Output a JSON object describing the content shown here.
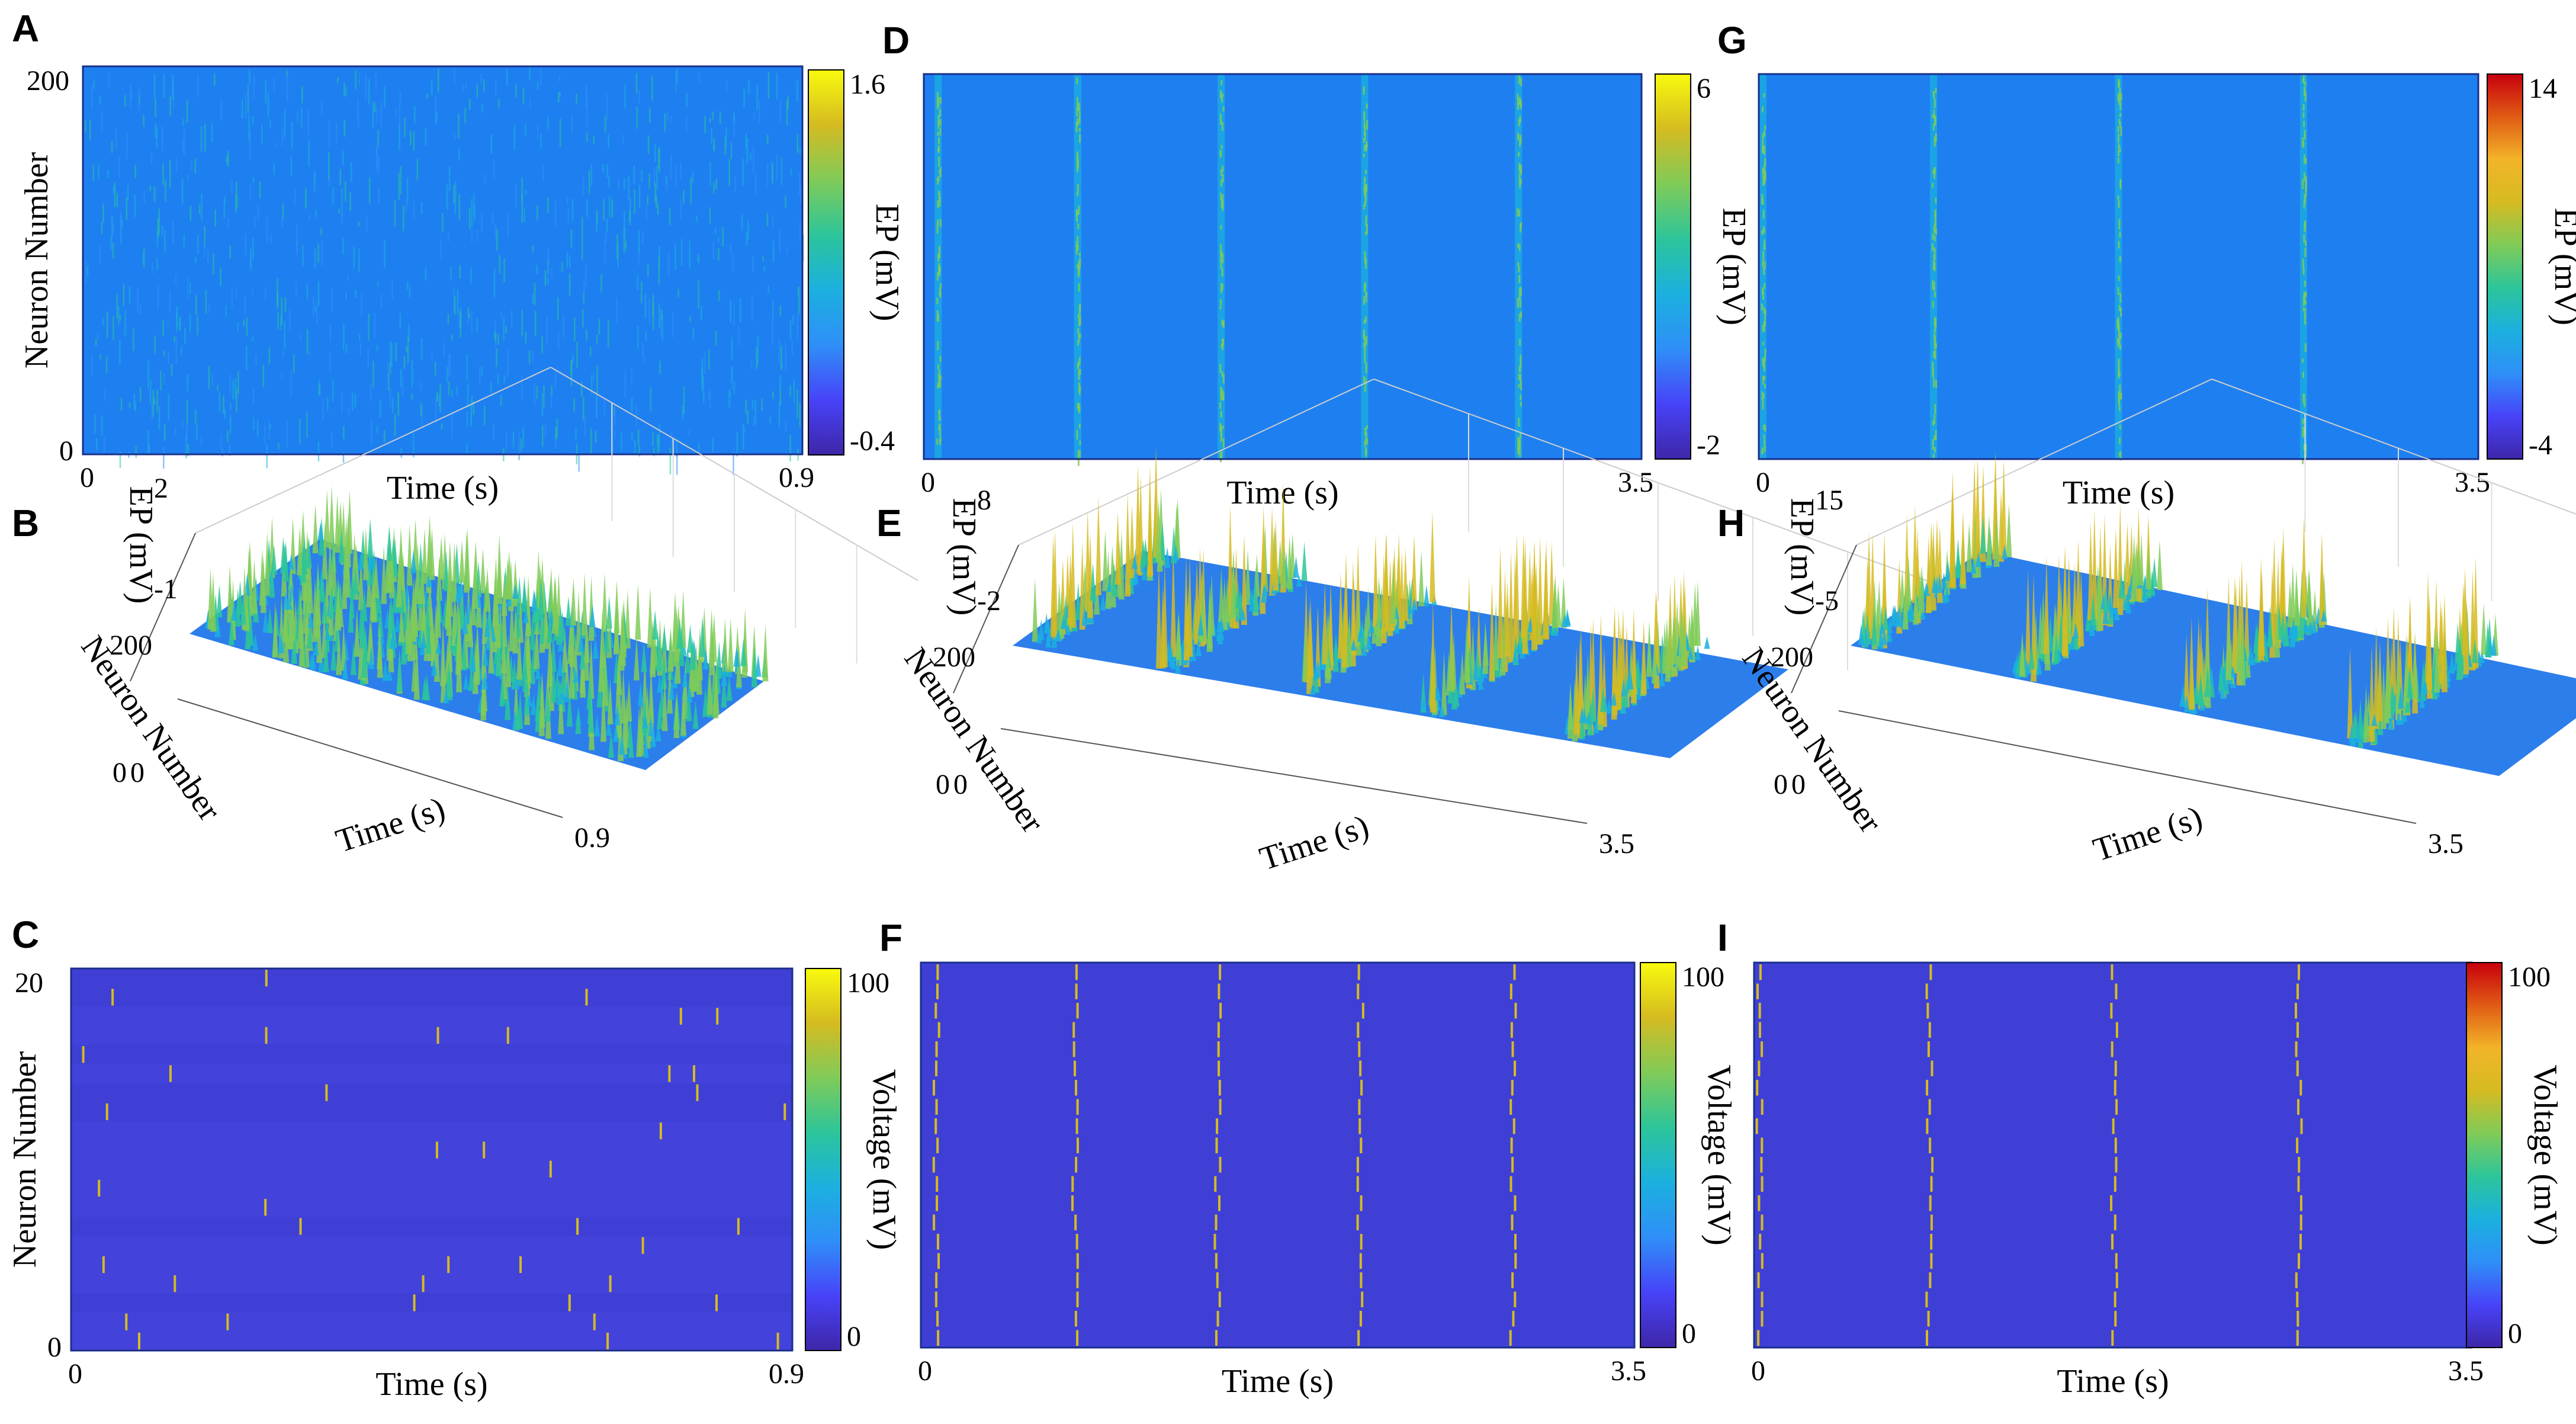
{
  "panels": [
    {
      "id": "A",
      "label": "A",
      "type": "heatmap",
      "mode": "noise",
      "xlabel": "Time (s)",
      "ylabel": "Neuron Number",
      "xlim": [
        0,
        0.9
      ],
      "ylim": [
        0,
        200
      ],
      "xticks": [
        "0",
        "0.9"
      ],
      "yticks": [
        "0",
        "200"
      ],
      "colorbar": {
        "label": "EP (mV)",
        "min": -0.4,
        "max": 1.6,
        "ticks": [
          "1.6",
          "-0.4"
        ]
      }
    },
    {
      "id": "B",
      "label": "B",
      "type": "surface3d",
      "mode": "noise",
      "xlabel": "Time (s)",
      "ylabel": "Neuron Number",
      "zlabel": "EP (mV)",
      "xticks": [
        "0",
        "0.9"
      ],
      "yticks": [
        "0",
        "200"
      ],
      "zticks": [
        "2",
        "-1"
      ]
    },
    {
      "id": "C",
      "label": "C",
      "type": "heatmap",
      "mode": "spikes",
      "xlabel": "Time (s)",
      "ylabel": "Neuron Number",
      "xlim": [
        0,
        0.9
      ],
      "ylim": [
        0,
        20
      ],
      "xticks": [
        "0",
        "0.9"
      ],
      "yticks": [
        "0",
        "20"
      ],
      "colorbar": {
        "label": "Voltage (mV)",
        "min": 0,
        "max": 100,
        "ticks": [
          "100",
          "0"
        ]
      }
    },
    {
      "id": "D",
      "label": "D",
      "type": "heatmap",
      "mode": "bursts",
      "xlabel": "Time (s)",
      "xlim": [
        0,
        3.5
      ],
      "xticks": [
        "0",
        "3.5"
      ],
      "bursts_s": [
        0.07,
        0.75,
        1.45,
        2.15,
        2.9
      ],
      "colorbar": {
        "label": "EP (mV)",
        "min": -2,
        "max": 6,
        "ticks": [
          "6",
          "-2"
        ]
      }
    },
    {
      "id": "E",
      "label": "E",
      "type": "surface3d",
      "mode": "bursts",
      "xlabel": "Time (s)",
      "ylabel": "Neuron Number",
      "zlabel": "EP (mV)",
      "xticks": [
        "0",
        "3.5"
      ],
      "yticks": [
        "0",
        "200"
      ],
      "zticks": [
        "8",
        "-2"
      ],
      "bursts_s": [
        0.07,
        0.75,
        1.45,
        2.15,
        2.9
      ]
    },
    {
      "id": "F",
      "label": "F",
      "type": "heatmap",
      "mode": "spikes_sync",
      "xlabel": "Time (s)",
      "xlim": [
        0,
        3.5
      ],
      "xticks": [
        "0",
        "3.5"
      ],
      "bursts_s": [
        0.07,
        0.75,
        1.45,
        2.15,
        2.9
      ],
      "colorbar": {
        "label": "Voltage (mV)",
        "min": 0,
        "max": 100,
        "ticks": [
          "100",
          "0"
        ]
      }
    },
    {
      "id": "G",
      "label": "G",
      "type": "heatmap",
      "mode": "bursts",
      "xlabel": "Time (s)",
      "xlim": [
        0,
        3.5
      ],
      "xticks": [
        "0",
        "3.5"
      ],
      "bursts_s": [
        0.02,
        0.85,
        1.75,
        2.65
      ],
      "colorbar": {
        "label": "EP (mV)",
        "min": -4,
        "max": 14,
        "ticks": [
          "14",
          "-4"
        ]
      }
    },
    {
      "id": "H",
      "label": "H",
      "type": "surface3d",
      "mode": "bursts",
      "xlabel": "Time (s)",
      "ylabel": "Neuron Number",
      "zlabel": "EP (mV)",
      "xticks": [
        "0",
        "3.5"
      ],
      "yticks": [
        "0",
        "200"
      ],
      "zticks": [
        "15",
        "-5"
      ],
      "bursts_s": [
        0.02,
        0.85,
        1.75,
        2.65
      ]
    },
    {
      "id": "I",
      "label": "I",
      "type": "heatmap",
      "mode": "spikes_sync",
      "xlabel": "Time (s)",
      "xlim": [
        0,
        3.5
      ],
      "xticks": [
        "0",
        "3.5"
      ],
      "bursts_s": [
        0.02,
        0.85,
        1.75,
        2.65
      ],
      "colorbar": {
        "label": "Voltage (mV)",
        "min": 0,
        "max": 100,
        "ticks": [
          "100",
          "0"
        ]
      }
    }
  ],
  "colormap": [
    "#3e26a8",
    "#4743f8",
    "#2f8ff8",
    "#1bb0df",
    "#2cc59a",
    "#80cb58",
    "#d5bb21",
    "#f8fa0d"
  ],
  "colormap_hot_end": [
    "#3e26a8",
    "#4743f8",
    "#2f8ff8",
    "#1bb0df",
    "#2cc59a",
    "#80cb58",
    "#d5bb21",
    "#f2b429",
    "#e05b14",
    "#c8000d"
  ]
}
